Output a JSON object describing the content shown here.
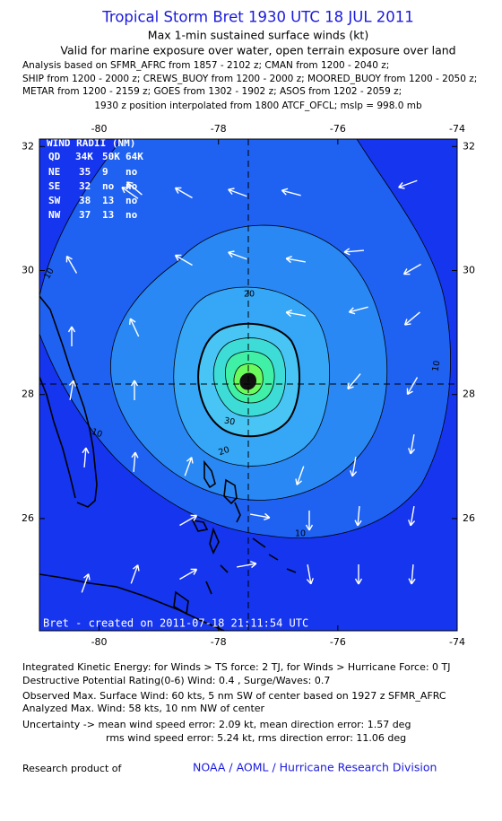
{
  "header": {
    "title": "Tropical Storm Bret 1930 UTC 18 JUL 2011",
    "subtitle": [
      "Max 1-min sustained surface winds (kt)",
      "Valid for marine exposure over water, open terrain exposure over land"
    ],
    "analysis": [
      "Analysis based on SFMR_AFRC from 1857 - 2102 z; CMAN from 1200 - 2040 z;",
      "SHIP from 1200 - 2000 z; CREWS_BUOY from 1200 - 2000 z; MOORED_BUOY from 1200 - 2050 z;",
      "METAR from 1200 - 2159 z; GOES from 1302 - 1902 z; ASOS from 1202 - 2059 z;"
    ],
    "position_note": "1930 z position interpolated from 1800 ATCF_OFCL; mslp = 998.0 mb"
  },
  "map": {
    "xlim": [
      -81,
      -74
    ],
    "ylim": [
      24.19,
      32.12
    ],
    "xticks": [
      -80,
      -78,
      -76,
      -74
    ],
    "yticks": [
      26,
      28,
      30,
      32
    ],
    "contour_labels": [
      10,
      10,
      10,
      10,
      20,
      20,
      30
    ],
    "wind_radii": {
      "title": "WIND RADII (NM)",
      "header": [
        "QD",
        "34K",
        "50K",
        "64K"
      ],
      "rows": [
        [
          "NE",
          "35",
          "9",
          "no"
        ],
        [
          "SE",
          "32",
          "no",
          "no"
        ],
        [
          "SW",
          "38",
          "13",
          "no"
        ],
        [
          "NW",
          "37",
          "13",
          "no"
        ]
      ]
    },
    "credit": "Bret - created on 2011-07-18 21:11:54 UTC"
  },
  "footer": {
    "lines": [
      "Integrated Kinetic Energy:  for Winds > TS force: 2 TJ,  for Winds > Hurricane Force: 0 TJ",
      "Destructive Potential Rating(0-6)   Wind: 0.4 , Surge/Waves: 0.7",
      "Observed Max. Surface Wind: 60 kts, 5 nm SW of center based on 1927 z SFMR_AFRC",
      "Analyzed Max. Wind: 58 kts, 10 nm NW of center",
      "Uncertainty -> mean wind speed error: 2.09 kt,   mean direction error: 1.57 deg",
      "rms wind speed error: 5.24 kt,   rms direction error: 11.06 deg"
    ],
    "research": "Research product of",
    "organization": "NOAA / AOML / Hurricane Research Division"
  }
}
